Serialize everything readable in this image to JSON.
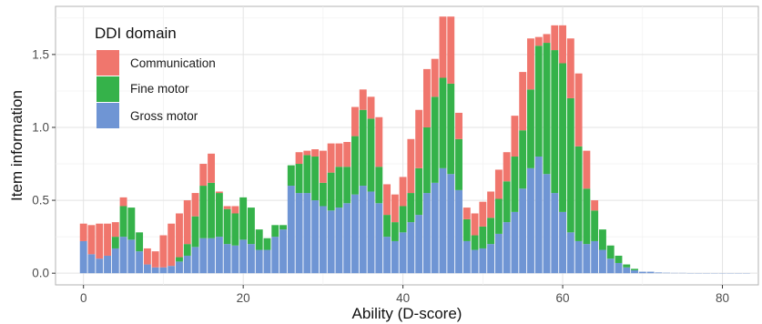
{
  "chart_data": {
    "type": "bar",
    "stacked": true,
    "xlabel": "Ability (D-score)",
    "ylabel": "Item information",
    "xlim": [
      -3.5,
      84.5
    ],
    "ylim": [
      -0.08,
      1.83
    ],
    "x_ticks": [
      0,
      20,
      40,
      60,
      80
    ],
    "y_ticks": [
      0.0,
      0.5,
      1.0,
      1.5
    ],
    "x_tick_labels": [
      "0",
      "20",
      "40",
      "60",
      "80"
    ],
    "y_tick_labels": [
      "0.0",
      "0.5",
      "1.0",
      "1.5"
    ],
    "grid": true,
    "legend": {
      "title": "DDI domain",
      "position": "top-left inside"
    },
    "x": [
      0,
      1,
      2,
      3,
      4,
      5,
      6,
      7,
      8,
      9,
      10,
      11,
      12,
      13,
      14,
      15,
      16,
      17,
      18,
      19,
      20,
      21,
      22,
      23,
      24,
      25,
      26,
      27,
      28,
      29,
      30,
      31,
      32,
      33,
      34,
      35,
      36,
      37,
      38,
      39,
      40,
      41,
      42,
      43,
      44,
      45,
      46,
      47,
      48,
      49,
      50,
      51,
      52,
      53,
      54,
      55,
      56,
      57,
      58,
      59,
      60,
      61,
      62,
      63,
      64,
      65,
      66,
      67,
      68,
      69,
      70,
      71,
      72,
      73,
      74,
      75,
      76,
      77,
      78,
      79,
      80,
      81,
      82,
      83
    ],
    "series": [
      {
        "name": "Gross motor",
        "color": "#6f95d4",
        "values": [
          0.22,
          0.13,
          0.1,
          0.12,
          0.17,
          0.25,
          0.23,
          0.15,
          0.06,
          0.04,
          0.04,
          0.05,
          0.08,
          0.12,
          0.18,
          0.24,
          0.24,
          0.25,
          0.2,
          0.19,
          0.23,
          0.2,
          0.16,
          0.16,
          0.25,
          0.3,
          0.6,
          0.55,
          0.55,
          0.5,
          0.46,
          0.43,
          0.45,
          0.48,
          0.54,
          0.6,
          0.56,
          0.48,
          0.25,
          0.22,
          0.28,
          0.35,
          0.4,
          0.55,
          0.62,
          0.72,
          0.68,
          0.57,
          0.22,
          0.16,
          0.17,
          0.2,
          0.27,
          0.35,
          0.42,
          0.58,
          0.72,
          0.8,
          0.68,
          0.55,
          0.42,
          0.28,
          0.22,
          0.2,
          0.22,
          0.16,
          0.1,
          0.07,
          0.04,
          0.02,
          0.01,
          0.01,
          0.005,
          0.003,
          0.002,
          0.002,
          0.001,
          0.001,
          0.001,
          0.001,
          0.001,
          0.001,
          0.001,
          0.001
        ]
      },
      {
        "name": "Fine motor",
        "color": "#35b24a",
        "values": [
          0.0,
          0.0,
          0.0,
          0.0,
          0.08,
          0.21,
          0.22,
          0.13,
          0.0,
          0.0,
          0.0,
          0.0,
          0.03,
          0.08,
          0.21,
          0.36,
          0.38,
          0.3,
          0.24,
          0.22,
          0.29,
          0.25,
          0.14,
          0.08,
          0.08,
          0.03,
          0.14,
          0.2,
          0.26,
          0.3,
          0.16,
          0.26,
          0.28,
          0.25,
          0.4,
          0.52,
          0.5,
          0.25,
          0.15,
          0.13,
          0.18,
          0.2,
          0.32,
          0.45,
          0.59,
          0.62,
          0.62,
          0.35,
          0.15,
          0.1,
          0.15,
          0.18,
          0.24,
          0.28,
          0.38,
          0.4,
          0.54,
          0.76,
          0.9,
          0.98,
          1.02,
          0.92,
          0.65,
          0.38,
          0.21,
          0.14,
          0.09,
          0.05,
          0.02,
          0.01,
          0.0,
          0.0,
          0.0,
          0.0,
          0.0,
          0.0,
          0.0,
          0.0,
          0.0,
          0.0,
          0.0,
          0.0,
          0.0,
          0.0
        ]
      },
      {
        "name": "Communication",
        "color": "#f0766d",
        "values": [
          0.12,
          0.2,
          0.24,
          0.22,
          0.1,
          0.06,
          0.0,
          0.0,
          0.11,
          0.11,
          0.22,
          0.29,
          0.3,
          0.3,
          0.16,
          0.15,
          0.2,
          0.01,
          0.02,
          0.05,
          0.0,
          0.0,
          0.0,
          0.0,
          0.0,
          0.0,
          0.0,
          0.08,
          0.03,
          0.05,
          0.22,
          0.2,
          0.16,
          0.17,
          0.2,
          0.14,
          0.15,
          0.34,
          0.21,
          0.19,
          0.2,
          0.37,
          0.4,
          0.4,
          0.26,
          0.42,
          0.46,
          0.18,
          0.08,
          0.15,
          0.17,
          0.18,
          0.2,
          0.2,
          0.28,
          0.4,
          0.35,
          0.06,
          0.06,
          0.17,
          0.26,
          0.41,
          0.5,
          0.26,
          0.07,
          0.0,
          0.0,
          0.0,
          0.0,
          0.0,
          0.0,
          0.0,
          0.0,
          0.0,
          0.0,
          0.0,
          0.0,
          0.0,
          0.0,
          0.0,
          0.0,
          0.0,
          0.0,
          0.0
        ]
      }
    ]
  },
  "legend": {
    "title": "DDI domain",
    "items": [
      {
        "label": "Communication",
        "color": "#f0766d"
      },
      {
        "label": "Fine motor",
        "color": "#35b24a"
      },
      {
        "label": "Gross motor",
        "color": "#6f95d4"
      }
    ]
  }
}
